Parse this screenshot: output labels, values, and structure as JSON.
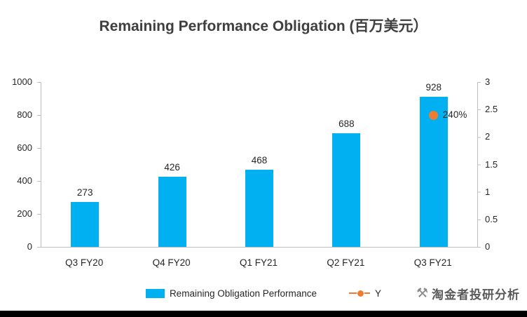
{
  "chart_data": {
    "type": "bar",
    "title": "Remaining Performance Obligation (百万美元）",
    "categories": [
      "Q3 FY20",
      "Q4 FY20",
      "Q1 FY21",
      "Q2 FY21",
      "Q3 FY21"
    ],
    "series": [
      {
        "name": "Remaining Obligation Performance",
        "type": "bar",
        "axis": "left",
        "color": "#00B0F0",
        "values": [
          273,
          426,
          468,
          688,
          928
        ],
        "data_labels": [
          "273",
          "426",
          "468",
          "688",
          "928"
        ]
      },
      {
        "name": "Y",
        "type": "line",
        "axis": "right",
        "color": "#ED7D31",
        "values": [
          null,
          null,
          null,
          null,
          2.4
        ],
        "data_labels": [
          null,
          null,
          null,
          null,
          "240%"
        ]
      }
    ],
    "ylim_left": [
      0,
      1000
    ],
    "left_ticks": [
      "1000",
      "800",
      "600",
      "400",
      "200",
      "0"
    ],
    "ylim_right": [
      0,
      3
    ],
    "right_ticks": [
      "3",
      "2.5",
      "2",
      "1.5",
      "1",
      "0.5",
      "0"
    ],
    "grid": false,
    "legend_position": "bottom"
  },
  "watermark": {
    "text": "淘金者投研分析"
  }
}
